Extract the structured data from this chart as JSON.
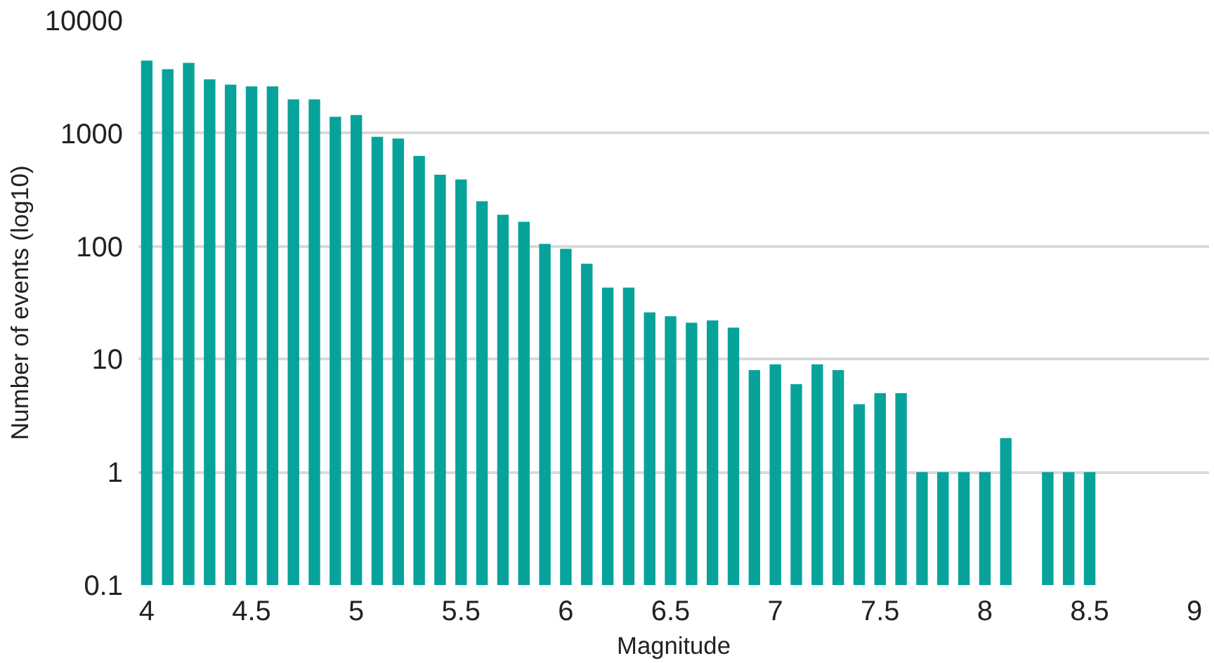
{
  "chart_data": {
    "type": "bar",
    "xlabel": "Magnitude",
    "ylabel": "Number of events (log10)",
    "x": [
      4.0,
      4.1,
      4.2,
      4.3,
      4.4,
      4.5,
      4.6,
      4.7,
      4.8,
      4.9,
      5.0,
      5.1,
      5.2,
      5.3,
      5.4,
      5.5,
      5.6,
      5.7,
      5.8,
      5.9,
      6.0,
      6.1,
      6.2,
      6.3,
      6.4,
      6.5,
      6.6,
      6.7,
      6.8,
      6.9,
      7.0,
      7.1,
      7.2,
      7.3,
      7.4,
      7.5,
      7.6,
      7.7,
      7.8,
      7.9,
      8.0,
      8.1,
      8.2,
      8.3,
      8.4,
      8.5
    ],
    "values": [
      4400,
      3700,
      4200,
      3000,
      2700,
      2600,
      2600,
      2000,
      2000,
      1400,
      1450,
      930,
      900,
      630,
      430,
      390,
      250,
      190,
      165,
      105,
      95,
      70,
      43,
      43,
      26,
      24,
      21,
      22,
      19,
      8,
      9,
      6,
      9,
      8,
      4,
      5,
      5,
      1,
      1,
      1,
      1,
      2,
      null,
      1,
      1,
      1
    ],
    "color": "#07a39b",
    "log": true,
    "grid": "y",
    "xlim": [
      3.96,
      9.07
    ],
    "xticks": [
      4,
      4.5,
      5,
      5.5,
      6,
      6.5,
      7,
      7.5,
      8,
      8.5,
      9
    ],
    "ylim": [
      0.1,
      10000
    ],
    "yticks": [
      {
        "value": 0.1,
        "label": "0.1"
      },
      1,
      10,
      100,
      1000,
      10000
    ]
  }
}
